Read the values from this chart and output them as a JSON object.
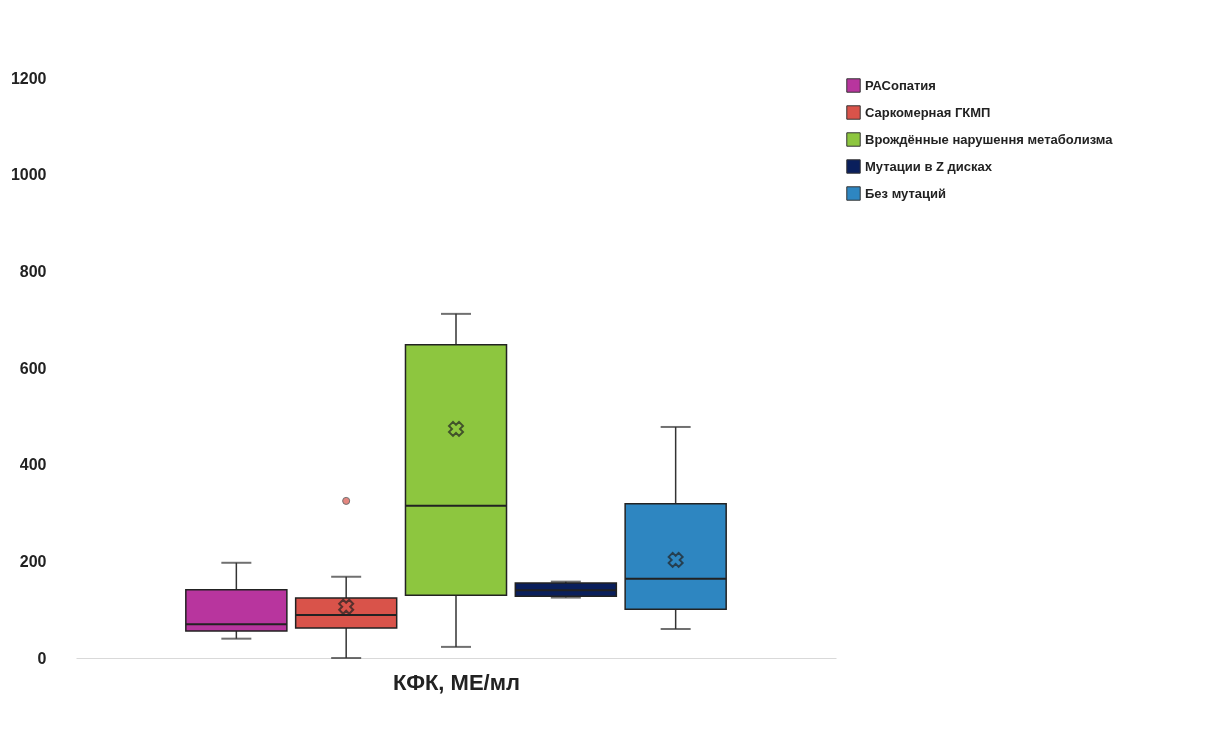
{
  "chart_data": {
    "type": "box",
    "xlabel": "КФК, МЕ/мл",
    "categories": [
      null
    ],
    "ylim": [
      0,
      1200
    ],
    "yticks": [
      0,
      200,
      400,
      600,
      800,
      1000,
      1200
    ],
    "grid": false,
    "legend": "right",
    "marker": "cross",
    "series": [
      {
        "name": "РАСопатия",
        "color": "#b8359e",
        "boxes": [
          {
            "low": 40,
            "q1": 56,
            "median": 70,
            "q3": 141,
            "high": 197
          }
        ]
      },
      {
        "name": "Саркомерная ГКМП",
        "color": "#d9534a",
        "boxes": [
          {
            "low": 0,
            "q1": 62,
            "median": 89,
            "q3": 124,
            "high": 168,
            "mean": 106,
            "outliers": [
              325
            ]
          }
        ]
      },
      {
        "name": "Врождённые нарушення метаболизма",
        "color": "#8dc63f",
        "boxes": [
          {
            "low": 23,
            "q1": 130,
            "median": 315,
            "q3": 648,
            "high": 712,
            "mean": 474
          }
        ]
      },
      {
        "name": "Мутации в Z дисках",
        "color": "#0a1f5c",
        "boxes": [
          {
            "low": 125,
            "q1": 128,
            "median": 140,
            "q3": 155,
            "high": 158
          }
        ]
      },
      {
        "name": "Без мутаций",
        "color": "#2e86c1",
        "boxes": [
          {
            "low": 60,
            "q1": 101,
            "median": 164,
            "q3": 319,
            "high": 478,
            "mean": 203
          }
        ]
      }
    ]
  }
}
